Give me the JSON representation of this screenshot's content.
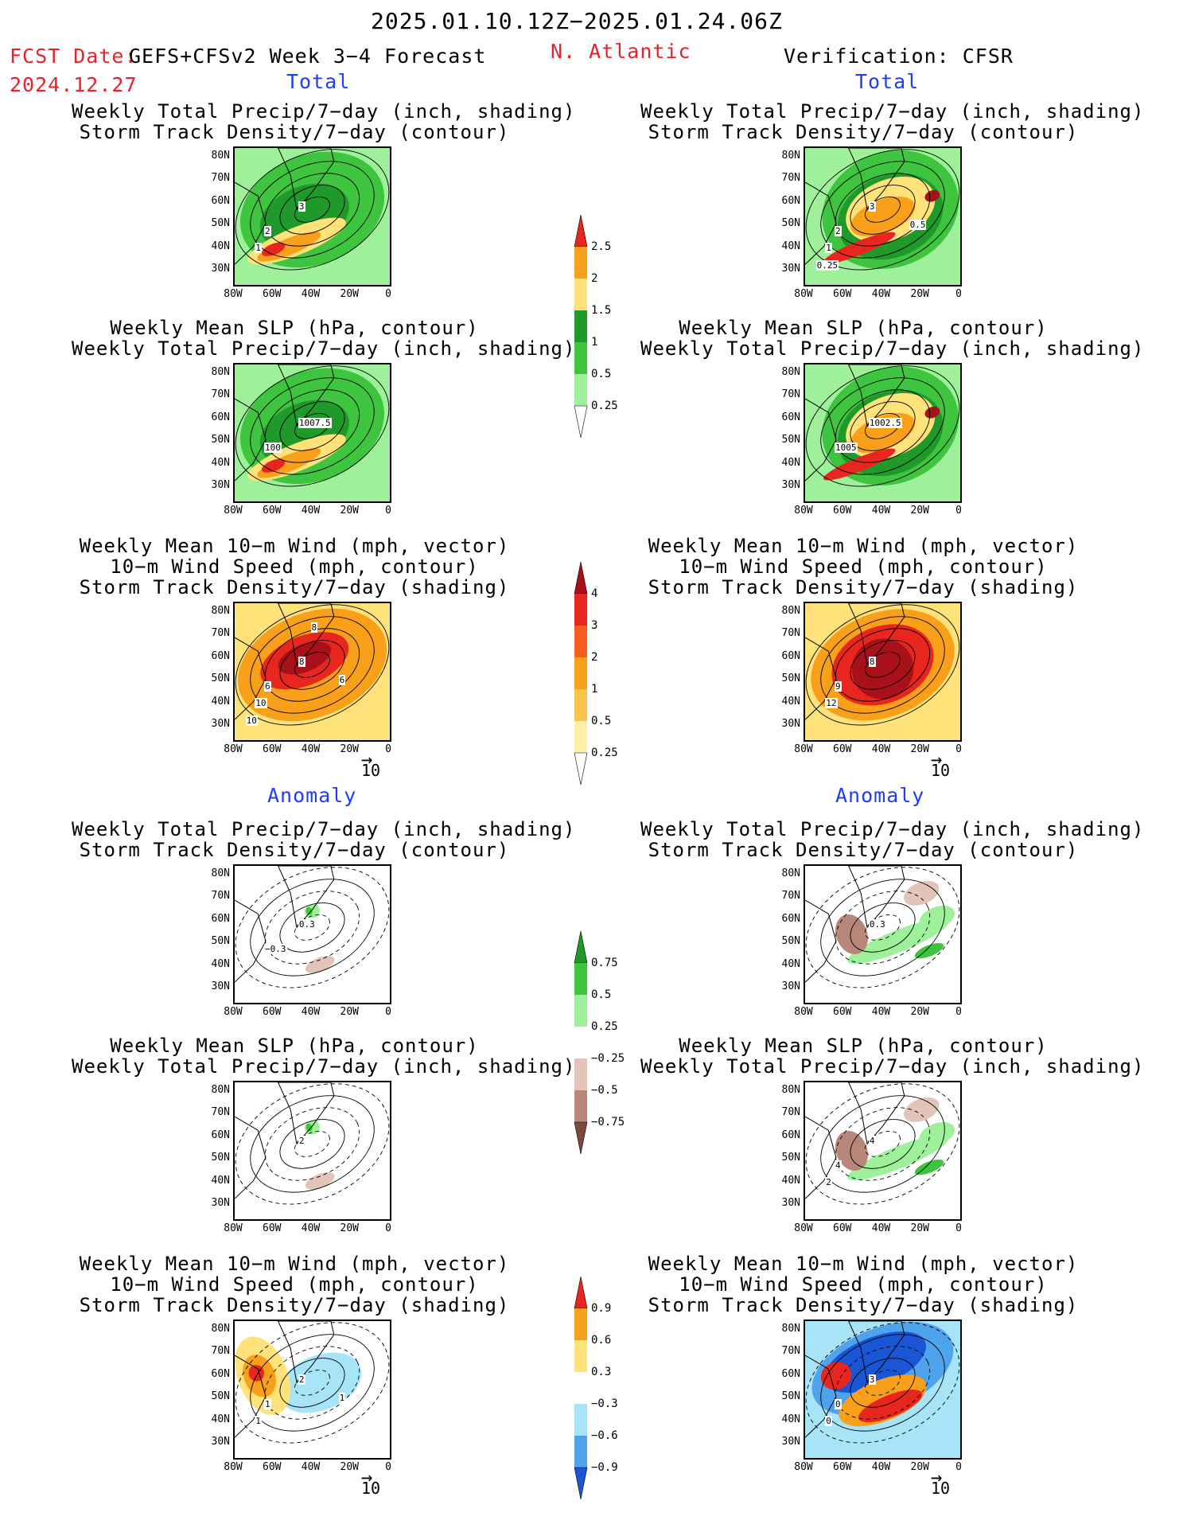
{
  "header": {
    "period": "2025.01.10.12Z−2025.01.24.06Z",
    "fcst_label": "FCST Date:",
    "model": "GEFS+CFSv2 Week 3−4 Forecast",
    "fcst_date": "2024.12.27",
    "region": "N. Atlantic",
    "verification": "Verification: CFSR"
  },
  "sections": {
    "total": "Total",
    "anomaly": "Anomaly"
  },
  "titles": {
    "precip_track": [
      "Weekly Total Precip/7−day (inch, shading)",
      "Storm Track Density/7−day (contour)"
    ],
    "slp_precip": [
      "Weekly Mean SLP (hPa, contour)",
      "Weekly Total Precip/7−day (inch, shading)"
    ],
    "wind_track": [
      "Weekly Mean 10−m Wind (mph, vector)",
      "10−m Wind Speed (mph, contour)",
      "Storm Track Density/7−day (shading)"
    ]
  },
  "axes": {
    "lat": [
      "80N",
      "70N",
      "60N",
      "50N",
      "40N",
      "30N"
    ],
    "lon": [
      "80W",
      "60W",
      "40W",
      "20W",
      "0"
    ]
  },
  "vector_ref": "10",
  "colorbars": {
    "precip_total": [
      "2.5",
      "2",
      "1.5",
      "1",
      "0.5",
      "0.25"
    ],
    "track_total": [
      "4",
      "3",
      "2",
      "1",
      "0.5",
      "0.25"
    ],
    "precip_anom": [
      "0.75",
      "0.5",
      "0.25",
      "−0.25",
      "−0.5",
      "−0.75"
    ],
    "track_anom": [
      "0.9",
      "0.6",
      "0.3",
      "−0.3",
      "−0.6",
      "−0.9"
    ]
  },
  "contour_labels": {
    "l_pt": [
      "3",
      "2",
      "1"
    ],
    "r_pt": [
      "3",
      "2",
      "1",
      "0.5",
      "0.25"
    ],
    "l_slp": [
      "1007.5",
      "100"
    ],
    "r_slp": [
      "1002.5",
      "1005"
    ],
    "l_wt": [
      "8",
      "6",
      "10",
      "6",
      "10",
      "8"
    ],
    "r_wt": [
      "8",
      "9",
      "12"
    ],
    "la_pt": [
      "0.3",
      "−0.3"
    ],
    "ra_pt": [
      "0.3"
    ],
    "la_slp": [
      "2"
    ],
    "ra_slp": [
      "4",
      "4",
      "2"
    ],
    "la_wt": [
      "2",
      "1",
      "1",
      "1"
    ],
    "ra_wt": [
      "3",
      "0",
      "0"
    ]
  },
  "colors": {
    "green_light": "#9ef09a",
    "green_mid": "#3ec43e",
    "green_dark": "#1f9a2a",
    "yellow": "#ffe27a",
    "orange": "#f9a01b",
    "red": "#e8261f",
    "darkred": "#a8101a",
    "brown_light": "#e2c4b8",
    "brown_mid": "#b9877a",
    "brown_dark": "#7a4a3c",
    "blue_light": "#a8e4f7",
    "blue_mid": "#4fa3ec",
    "blue_dark": "#1a55d6"
  }
}
